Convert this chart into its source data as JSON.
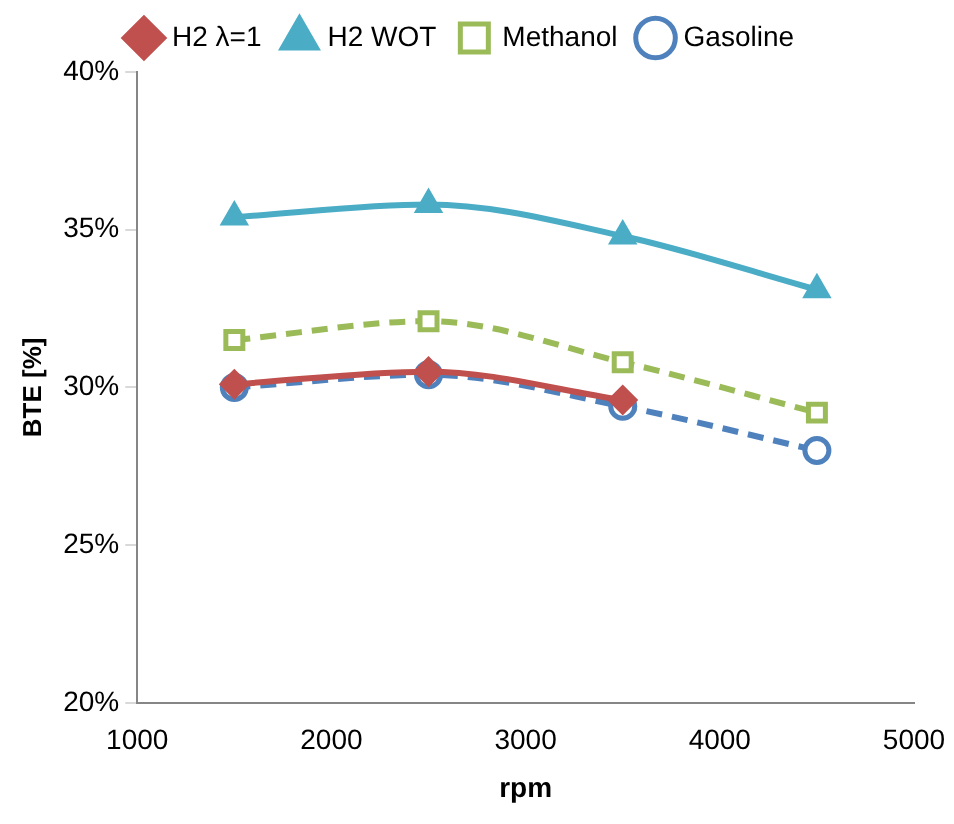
{
  "chart_data": {
    "type": "line",
    "xlabel": "rpm",
    "ylabel": "BTE [%]",
    "x": [
      1500,
      2500,
      3500,
      4500
    ],
    "xlim": [
      1000,
      5000
    ],
    "xticks": [
      1000,
      2000,
      3000,
      4000,
      5000
    ],
    "ylim": [
      20,
      40
    ],
    "yticks": [
      {
        "value": 20,
        "label": "20%"
      },
      {
        "value": 25,
        "label": "25%"
      },
      {
        "value": 30,
        "label": "30%"
      },
      {
        "value": 35,
        "label": "35%"
      },
      {
        "value": 40,
        "label": "40%"
      }
    ],
    "grid": false,
    "legend": "top",
    "series": [
      {
        "name": "Gasoline",
        "color": "#4f81bd",
        "values": [
          30.0,
          30.4,
          29.4,
          28.0
        ],
        "marker": "circle",
        "line_style": "dashed"
      },
      {
        "name": "Methanol",
        "color": "#9bbb59",
        "values": [
          31.5,
          32.1,
          30.8,
          29.2
        ],
        "marker": "square",
        "line_style": "dashed"
      },
      {
        "name": "H2 WOT",
        "color": "#4bacc6",
        "values": [
          35.4,
          35.8,
          34.8,
          33.1
        ],
        "marker": "triangle",
        "line_style": "solid"
      },
      {
        "name": "H2 λ=1",
        "color": "#c0504d",
        "values": [
          30.1,
          30.5,
          29.6,
          null
        ],
        "marker": "diamond",
        "line_style": "solid"
      }
    ]
  }
}
